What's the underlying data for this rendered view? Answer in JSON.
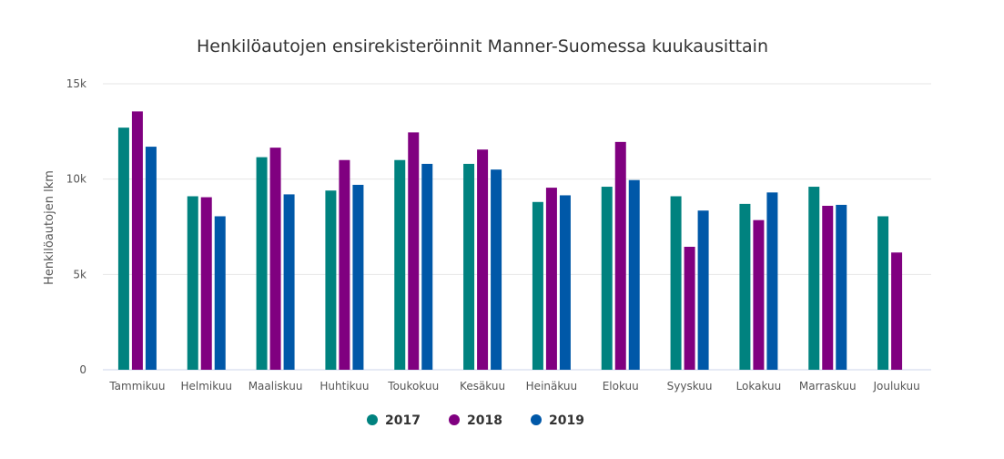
{
  "chart_data": {
    "type": "bar",
    "title": "Henkilöautojen ensirekisteröinnit Manner-Suomessa kuukausittain",
    "ylabel": "Henkilöautojen lkm",
    "xlabel": "",
    "ylim": [
      0,
      15000
    ],
    "yticks": [
      0,
      5000,
      10000,
      15000
    ],
    "ytick_labels": [
      "0",
      "5k",
      "10k",
      "15k"
    ],
    "grid": true,
    "legend_position": "bottom-center",
    "categories": [
      "Tammikuu",
      "Helmikuu",
      "Maaliskuu",
      "Huhtikuu",
      "Toukokuu",
      "Kesäkuu",
      "Heinäkuu",
      "Elokuu",
      "Syyskuu",
      "Lokakuu",
      "Marraskuu",
      "Joulukuu"
    ],
    "series": [
      {
        "name": "2017",
        "color": "#00827F",
        "values": [
          12700,
          9100,
          11150,
          9400,
          11000,
          10800,
          8800,
          9600,
          9100,
          8700,
          9600,
          8050
        ]
      },
      {
        "name": "2018",
        "color": "#800080",
        "values": [
          13550,
          9050,
          11650,
          11000,
          12450,
          11550,
          9550,
          11950,
          6450,
          7850,
          8600,
          6150
        ]
      },
      {
        "name": "2019",
        "color": "#0058A8",
        "values": [
          11700,
          8050,
          9200,
          9700,
          10800,
          10500,
          9150,
          9950,
          8350,
          9300,
          8650,
          null
        ]
      }
    ]
  }
}
